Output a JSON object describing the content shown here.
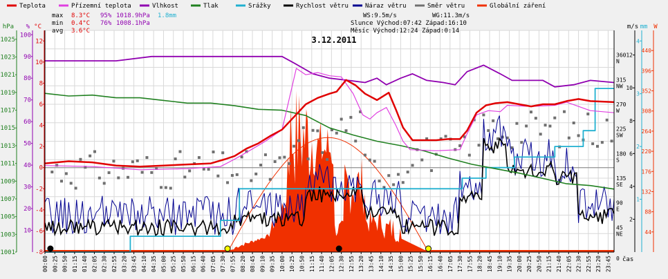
{
  "legend": [
    {
      "label": "Teplota",
      "color": "#e00000"
    },
    {
      "label": "Přízemní teplota",
      "color": "#e040e0"
    },
    {
      "label": "Vlhkost",
      "color": "#9000b0"
    },
    {
      "label": "Tlak",
      "color": "#208020"
    },
    {
      "label": "Srážky",
      "color": "#20b0d0"
    },
    {
      "label": "Rychlost větru",
      "color": "#000000"
    },
    {
      "label": "Náraz větru",
      "color": "#000090"
    },
    {
      "label": "Směr větru",
      "color": "#707070"
    },
    {
      "label": "Globální záření",
      "color": "#f03000"
    }
  ],
  "stats": {
    "rows": [
      {
        "label": "max",
        "temp": "8.3°C",
        "hum": "95%",
        "press": "1018.9hPa",
        "rain": "1.8mm"
      },
      {
        "label": "min",
        "temp": "0.4°C",
        "hum": "76%",
        "press": "1008.1hPa",
        "rain": ""
      },
      {
        "label": "avg",
        "temp": "3.6°C",
        "hum": "",
        "press": "",
        "rain": ""
      }
    ],
    "ws": "WS:9.5m/s",
    "wg": "WG:11.3m/s",
    "sun": "Slunce Východ:07:42  Západ:16:10",
    "moon": "Měsíc  Východ:12:24  Západ:0:14"
  },
  "colors": {
    "temp": "#e00000",
    "ground": "#e040e0",
    "hum": "#9000b0",
    "press": "#208020",
    "rain": "#20b0d0",
    "wind": "#000000",
    "gust": "#000090",
    "dir": "#707070",
    "rad": "#f03000"
  },
  "chart_data": {
    "type": "line",
    "title": "3.12.2011",
    "xlabel": "čas",
    "x_ticks": [
      "00:00",
      "00:25",
      "00:50",
      "01:15",
      "01:40",
      "02:05",
      "02:30",
      "02:55",
      "03:20",
      "03:45",
      "04:10",
      "04:35",
      "05:00",
      "05:25",
      "05:50",
      "06:15",
      "06:40",
      "07:05",
      "07:30",
      "07:55",
      "08:20",
      "08:45",
      "09:10",
      "09:35",
      "10:00",
      "10:25",
      "10:50",
      "11:15",
      "11:40",
      "12:05",
      "12:30",
      "12:55",
      "13:20",
      "13:45",
      "14:10",
      "14:35",
      "15:00",
      "15:25",
      "15:50",
      "16:15",
      "16:40",
      "17:05",
      "17:30",
      "17:55",
      "18:20",
      "18:45",
      "19:10",
      "19:35",
      "20:00",
      "20:25",
      "20:50",
      "21:15",
      "21:40",
      "22:05",
      "22:30",
      "22:55",
      "23:20",
      "23:45"
    ],
    "axes": {
      "pressure": {
        "unit": "hPa",
        "ticks": [
          "1001",
          "1003",
          "1005",
          "1007",
          "1009",
          "1011",
          "1013",
          "1015",
          "1017",
          "1019",
          "1021",
          "1023",
          "1025"
        ],
        "range": [
          1001,
          1026
        ]
      },
      "humidity": {
        "unit": "%",
        "ticks": [
          "10",
          "20",
          "30",
          "40",
          "50",
          "60",
          "70",
          "80",
          "90",
          "100"
        ],
        "range": [
          0,
          102
        ]
      },
      "temperature": {
        "unit": "°C",
        "ticks": [
          "-8",
          "-6",
          "-4",
          "-2",
          "0",
          "2",
          "4",
          "6",
          "8",
          "10",
          "12"
        ],
        "range": [
          -8,
          13
        ]
      },
      "wind_direction": {
        "ticks": [
          "45 NE",
          "90 E",
          "135 SE",
          "180 S",
          "225 SW",
          "270 W",
          "315 NW",
          "360 N"
        ],
        "range": [
          0,
          405
        ]
      },
      "wind_speed": {
        "unit": "m/s",
        "ticks": [
          "2",
          "4",
          "6",
          "8",
          "10",
          "12"
        ],
        "range": [
          0,
          13.5
        ]
      },
      "rain": {
        "unit": "mm",
        "ticks": [
          "1",
          "2",
          "3",
          "4"
        ],
        "range": [
          0,
          4.2
        ]
      },
      "radiation": {
        "unit": "W",
        "ticks": [
          "44",
          "88",
          "132",
          "176",
          "220",
          "264",
          "308",
          "352",
          "396",
          "440"
        ],
        "range": [
          0,
          484
        ]
      }
    },
    "series": [
      {
        "name": "Teplota",
        "axis": "temperature",
        "points": [
          [
            0,
            0.4
          ],
          [
            1,
            0.6
          ],
          [
            2,
            0.5
          ],
          [
            3,
            0.2
          ],
          [
            4,
            0.1
          ],
          [
            5,
            0.2
          ],
          [
            6,
            0.3
          ],
          [
            7,
            0.4
          ],
          [
            7.6,
            0.8
          ],
          [
            8,
            1.1
          ],
          [
            8.5,
            1.8
          ],
          [
            9,
            2.3
          ],
          [
            9.5,
            3
          ],
          [
            10,
            3.6
          ],
          [
            10.5,
            4.8
          ],
          [
            11,
            6
          ],
          [
            11.5,
            6.6
          ],
          [
            12,
            7
          ],
          [
            12.3,
            7.2
          ],
          [
            12.7,
            8.3
          ],
          [
            13.1,
            7.8
          ],
          [
            13.5,
            7
          ],
          [
            14,
            6.4
          ],
          [
            14.5,
            7.1
          ],
          [
            14.8,
            5.5
          ],
          [
            15.1,
            3.8
          ],
          [
            15.5,
            2.6
          ],
          [
            16,
            2.6
          ],
          [
            16.5,
            2.6
          ],
          [
            17,
            2.7
          ],
          [
            17.5,
            2.7
          ],
          [
            17.8,
            3.5
          ],
          [
            18.2,
            5.2
          ],
          [
            18.6,
            5.9
          ],
          [
            19,
            6.1
          ],
          [
            19.5,
            6.2
          ],
          [
            20,
            6.0
          ],
          [
            20.5,
            5.8
          ],
          [
            21,
            6.0
          ],
          [
            21.5,
            6.0
          ],
          [
            22,
            6.3
          ],
          [
            22.5,
            6.5
          ],
          [
            23,
            6.3
          ],
          [
            24,
            6.2
          ]
        ]
      },
      {
        "name": "Přízemní teplota",
        "axis": "temperature",
        "points": [
          [
            0,
            0.2
          ],
          [
            2,
            0.1
          ],
          [
            4,
            -0.2
          ],
          [
            6,
            -0.1
          ],
          [
            7.4,
            0.1
          ],
          [
            8,
            0.8
          ],
          [
            8.7,
            1.7
          ],
          [
            9.3,
            2.5
          ],
          [
            10,
            3.6
          ],
          [
            10.3,
            6.5
          ],
          [
            10.6,
            9.4
          ],
          [
            11,
            8.8
          ],
          [
            11.5,
            9
          ],
          [
            12,
            8.7
          ],
          [
            12.5,
            8.6
          ],
          [
            13,
            7
          ],
          [
            13.4,
            5
          ],
          [
            13.7,
            4.6
          ],
          [
            14,
            5.2
          ],
          [
            14.4,
            5.7
          ],
          [
            14.8,
            4
          ],
          [
            15.1,
            2.5
          ],
          [
            15.4,
            1.7
          ],
          [
            16.5,
            1.6
          ],
          [
            17.5,
            1.7
          ],
          [
            17.8,
            3.2
          ],
          [
            18.2,
            5
          ],
          [
            18.7,
            5.4
          ],
          [
            19.2,
            5.3
          ],
          [
            19.5,
            5.9
          ],
          [
            20.5,
            5.8
          ],
          [
            21.5,
            5.9
          ],
          [
            22,
            6.2
          ],
          [
            23,
            5.4
          ],
          [
            24,
            5.2
          ]
        ]
      },
      {
        "name": "Vlhkost",
        "axis": "humidity",
        "points": [
          [
            0,
            88
          ],
          [
            3,
            88
          ],
          [
            4.5,
            90
          ],
          [
            6,
            90
          ],
          [
            9,
            90
          ],
          [
            10,
            90
          ],
          [
            10.5,
            87
          ],
          [
            11.3,
            82
          ],
          [
            12,
            80
          ],
          [
            12.8,
            79
          ],
          [
            13.5,
            78
          ],
          [
            14,
            80
          ],
          [
            14.4,
            77
          ],
          [
            15,
            80
          ],
          [
            15.5,
            82
          ],
          [
            16.1,
            79
          ],
          [
            16.8,
            78
          ],
          [
            17.3,
            77
          ],
          [
            17.8,
            83
          ],
          [
            18.5,
            86
          ],
          [
            19.2,
            82
          ],
          [
            19.7,
            79
          ],
          [
            20.3,
            79
          ],
          [
            21,
            79
          ],
          [
            21.5,
            76
          ],
          [
            22.3,
            77
          ],
          [
            23,
            79
          ],
          [
            24,
            78
          ]
        ]
      },
      {
        "name": "Tlak",
        "axis": "pressure",
        "points": [
          [
            0,
            1018.9
          ],
          [
            1,
            1018.6
          ],
          [
            2,
            1018.7
          ],
          [
            3,
            1018.4
          ],
          [
            4,
            1018.4
          ],
          [
            5,
            1018.1
          ],
          [
            6,
            1017.8
          ],
          [
            7,
            1017.8
          ],
          [
            8,
            1017.5
          ],
          [
            9,
            1017.1
          ],
          [
            10,
            1017.0
          ],
          [
            11,
            1016.4
          ],
          [
            11.5,
            1015.7
          ],
          [
            12,
            1015.0
          ],
          [
            13,
            1014.2
          ],
          [
            14,
            1013.5
          ],
          [
            15,
            1013.0
          ],
          [
            16,
            1012.4
          ],
          [
            17,
            1011.6
          ],
          [
            18,
            1010.9
          ],
          [
            19,
            1010.4
          ],
          [
            20,
            1009.9
          ],
          [
            21,
            1009.3
          ],
          [
            22,
            1008.7
          ],
          [
            23,
            1008.5
          ],
          [
            24,
            1008.1
          ]
        ]
      },
      {
        "name": "Srážky",
        "axis": "rain",
        "points": [
          [
            0,
            0
          ],
          [
            3.6,
            0
          ],
          [
            3.6,
            0.3
          ],
          [
            7.4,
            0.3
          ],
          [
            7.4,
            0.6
          ],
          [
            8.2,
            0.6
          ],
          [
            8.2,
            1.2
          ],
          [
            17.6,
            1.2
          ],
          [
            17.6,
            1.4
          ],
          [
            18.6,
            1.4
          ],
          [
            18.6,
            1.6
          ],
          [
            19.8,
            1.6
          ],
          [
            19.8,
            1.8
          ],
          [
            21.5,
            1.8
          ],
          [
            21.5,
            2
          ],
          [
            22.7,
            2
          ],
          [
            22.7,
            2.3
          ],
          [
            23.2,
            2.3
          ],
          [
            23.2,
            3.1
          ],
          [
            24,
            3.1
          ]
        ]
      }
    ],
    "theoretical_radiation": {
      "sunrise_h": 7.7,
      "sunset_h": 16.17,
      "peak_w": 250
    },
    "markers": [
      {
        "type": "sunrise",
        "time_h": 7.7
      },
      {
        "type": "sunset",
        "time_h": 16.17
      },
      {
        "type": "moonrise",
        "time_h": 12.4
      },
      {
        "type": "moonset",
        "time_h": 0.23
      }
    ]
  }
}
